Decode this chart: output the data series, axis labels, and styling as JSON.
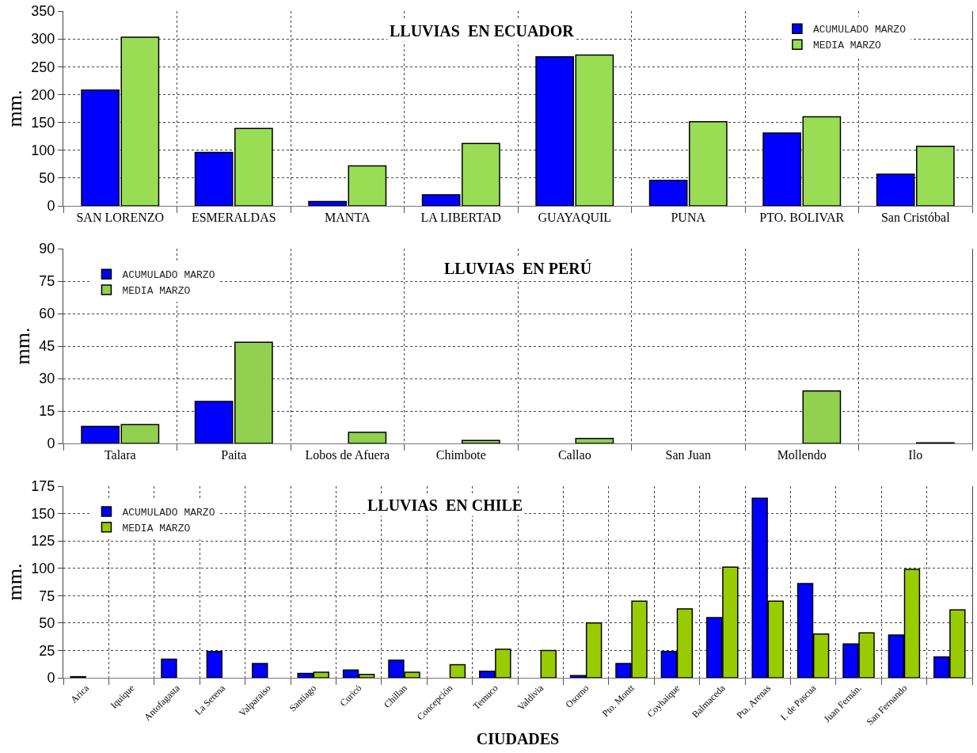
{
  "chart_data": [
    {
      "type": "bar",
      "title": "LLUVIAS  EN ECUADOR",
      "ylabel": "mm.",
      "categories": [
        "SAN LORENZO",
        "ESMERALDAS",
        "MANTA",
        "LA LIBERTAD",
        "GUAYAQUIL",
        "PUNA",
        "PTO. BOLIVAR",
        "San Cristóbal"
      ],
      "series": [
        {
          "name": "ACUMULADO MARZO",
          "color": "#0000ff",
          "values": [
            208,
            96,
            8,
            20,
            268,
            46,
            131,
            57
          ]
        },
        {
          "name": "MEDIA MARZO",
          "color": "#99dd55",
          "values": [
            303,
            139,
            72,
            112,
            271,
            151,
            160,
            107
          ]
        }
      ],
      "ylim": [
        0,
        350
      ],
      "yticks": [
        0,
        50,
        100,
        150,
        200,
        250,
        300,
        350
      ],
      "grid": true,
      "legend": "top right"
    },
    {
      "type": "bar",
      "title": "LLUVIAS  EN PERÚ",
      "ylabel": "mm.",
      "categories": [
        "Talara",
        "Paita",
        "Lobos de Afuera",
        "Chimbote",
        "Callao",
        "San Juan",
        "Mollendo",
        "Ilo"
      ],
      "series": [
        {
          "name": "ACUMULADO MARZO",
          "color": "#0000ff",
          "values": [
            7.9,
            19.4,
            null,
            null,
            null,
            null,
            null,
            null
          ]
        },
        {
          "name": "MEDIA MARZO",
          "color": "#92d050",
          "values": [
            8.7,
            46.7,
            5.1,
            1.4,
            2.3,
            null,
            24.2,
            0.3
          ]
        }
      ],
      "ylim": [
        0,
        90
      ],
      "yticks": [
        0,
        15,
        30,
        45,
        60,
        75,
        90
      ],
      "grid": true,
      "legend": "top left"
    },
    {
      "type": "bar",
      "title": "LLUVIAS  EN CHILE",
      "ylabel": "mm.",
      "xlabel": "CIUDADES",
      "categories": [
        "Arica",
        "Iquique",
        "Antofagasta",
        "La Serena",
        "Valparaiso",
        "Santiago",
        "Curicó",
        "Chillan",
        "Concepción",
        "Temuco",
        "Valdivia",
        "Osorno",
        "Pto. Montt",
        "Coyhaique",
        "Balmaceda",
        "Pta. Arenas",
        "I. de Pascua",
        "Juan Fernán.",
        "San Fernando",
        null
      ],
      "series": [
        {
          "name": "ACUMULADO MARZO",
          "color": "#0000ff",
          "values": [
            1,
            null,
            17,
            24,
            13,
            4,
            7,
            16,
            null,
            6,
            null,
            2,
            13,
            24,
            55,
            164,
            86,
            31,
            39,
            19
          ]
        },
        {
          "name": "MEDIA MARZO",
          "color": "#99cc00",
          "values": [
            null,
            null,
            null,
            null,
            null,
            5,
            3,
            5,
            12,
            26,
            25,
            50,
            70,
            63,
            101,
            70,
            40,
            41,
            99,
            62
          ]
        }
      ],
      "ylim": [
        0,
        175
      ],
      "yticks": [
        0,
        25,
        50,
        75,
        100,
        125,
        150,
        175
      ],
      "grid": true,
      "legend": "top left"
    }
  ]
}
